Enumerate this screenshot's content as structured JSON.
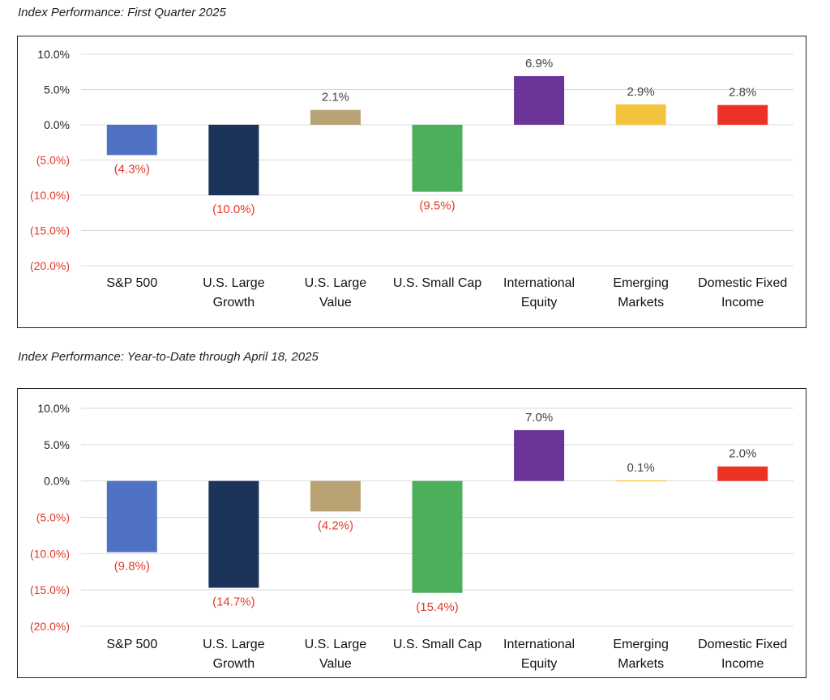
{
  "chart_data": [
    {
      "type": "bar",
      "title": "Index Performance: First Quarter 2025",
      "categories": [
        "S&P 500",
        "U.S. Large Growth",
        "U.S. Large Value",
        "U.S. Small Cap",
        "International Equity",
        "Emerging Markets",
        "Domestic Fixed Income"
      ],
      "category_lines": [
        [
          "S&P 500"
        ],
        [
          "U.S. Large",
          "Growth"
        ],
        [
          "U.S. Large",
          "Value"
        ],
        [
          "U.S. Small Cap"
        ],
        [
          "International",
          "Equity"
        ],
        [
          "Emerging",
          "Markets"
        ],
        [
          "Domestic Fixed",
          "Income"
        ]
      ],
      "values": [
        -4.3,
        -10.0,
        2.1,
        -9.5,
        6.9,
        2.9,
        2.8
      ],
      "data_labels": [
        "(4.3%)",
        "(10.0%)",
        "2.1%",
        "(9.5%)",
        "6.9%",
        "2.9%",
        "2.8%"
      ],
      "colors": [
        "#4f72c4",
        "#1c335a",
        "#b9a374",
        "#4caf5a",
        "#6a3499",
        "#f2c43d",
        "#ec3225"
      ],
      "ylim": [
        -20,
        10
      ],
      "yticks": [
        10,
        5,
        0,
        -5,
        -10,
        -15,
        -20
      ],
      "ytick_labels": [
        "10.0%",
        "5.0%",
        "0.0%",
        "(5.0%)",
        "(10.0%)",
        "(15.0%)",
        "(20.0%)"
      ],
      "negative_label_color": "#e23a2a",
      "positive_label_color": "#444444",
      "grid": true
    },
    {
      "type": "bar",
      "title": "Index Performance: Year-to-Date through April 18, 2025",
      "categories": [
        "S&P 500",
        "U.S. Large Growth",
        "U.S. Large Value",
        "U.S. Small Cap",
        "International Equity",
        "Emerging Markets",
        "Domestic Fixed Income"
      ],
      "category_lines": [
        [
          "S&P 500"
        ],
        [
          "U.S. Large",
          "Growth"
        ],
        [
          "U.S. Large",
          "Value"
        ],
        [
          "U.S. Small Cap"
        ],
        [
          "International",
          "Equity"
        ],
        [
          "Emerging",
          "Markets"
        ],
        [
          "Domestic Fixed",
          "Income"
        ]
      ],
      "values": [
        -9.8,
        -14.7,
        -4.2,
        -15.4,
        7.0,
        0.1,
        2.0
      ],
      "data_labels": [
        "(9.8%)",
        "(14.7%)",
        "(4.2%)",
        "(15.4%)",
        "7.0%",
        "0.1%",
        "2.0%"
      ],
      "colors": [
        "#4f72c4",
        "#1c335a",
        "#b9a374",
        "#4caf5a",
        "#6a3499",
        "#f2c43d",
        "#ec3225"
      ],
      "ylim": [
        -20,
        10
      ],
      "yticks": [
        10,
        5,
        0,
        -5,
        -10,
        -15,
        -20
      ],
      "ytick_labels": [
        "10.0%",
        "5.0%",
        "0.0%",
        "(5.0%)",
        "(10.0%)",
        "(15.0%)",
        "(20.0%)"
      ],
      "negative_label_color": "#e23a2a",
      "positive_label_color": "#444444",
      "grid": true
    }
  ]
}
